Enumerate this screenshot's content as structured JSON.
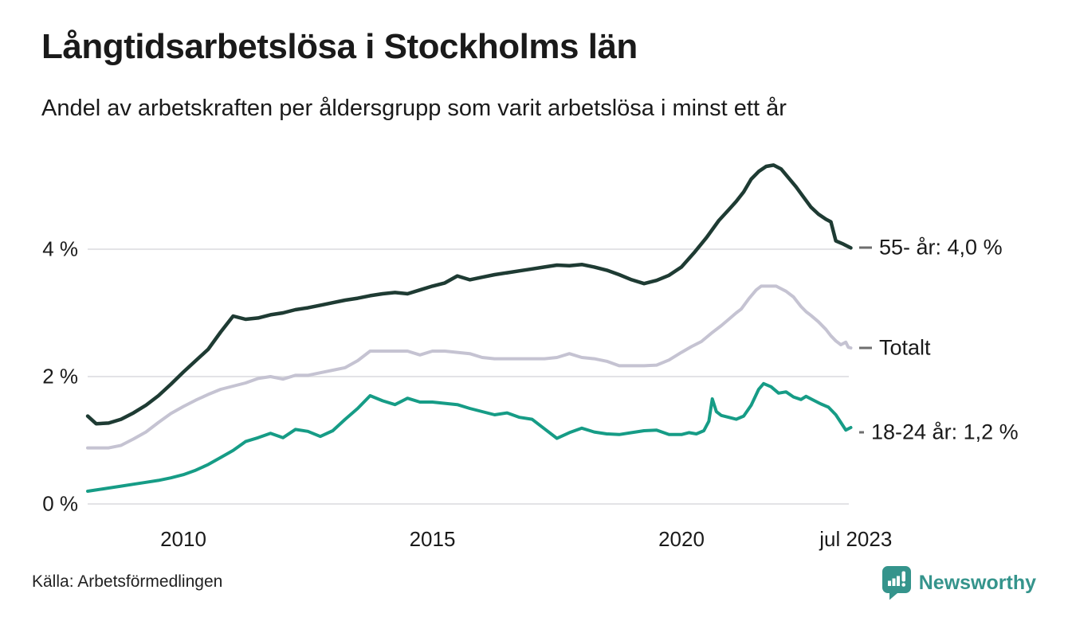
{
  "header": {
    "title": "Långtidsarbetslösa i Stockholms län",
    "subtitle": "Andel av arbetskraften per åldersgrupp som varit arbetslösa i minst ett år"
  },
  "footer": {
    "source": "Källa: Arbetsförmedlingen",
    "brand": "Newsworthy"
  },
  "colors": {
    "text": "#1a1a1a",
    "grid": "#e3e3e6",
    "connector_dash": "#6e6e6e",
    "brand_teal": "#35948c",
    "series_55": "#1e3b33",
    "series_total": "#c5c3d2",
    "series_1824": "#169c86"
  },
  "chart_data": {
    "type": "line",
    "title": "Långtidsarbetslösa i Stockholms län",
    "subtitle": "Andel av arbetskraften per åldersgrupp som varit arbetslösa i minst ett år",
    "unit": "% av arbetskraften",
    "grid": true,
    "legend_position": "right-end-labels",
    "xlim": [
      2008.05,
      2023.6
    ],
    "ylim": [
      0,
      5.5
    ],
    "x_axis": {
      "ticks": [
        {
          "label": "2010",
          "year": 2010
        },
        {
          "label": "2015",
          "year": 2015
        },
        {
          "label": "2020",
          "year": 2020
        },
        {
          "label": "jul 2023",
          "year": 2023.5
        }
      ]
    },
    "y_axis": {
      "ticks": [
        {
          "label": "4 %",
          "value": 4
        },
        {
          "label": "2 %",
          "value": 2
        },
        {
          "label": "0 %",
          "value": 0
        }
      ]
    },
    "series": [
      {
        "id": "55",
        "name": "55- år",
        "end_label": "55- år: 4,0 %",
        "end_value": 4.0,
        "color": "#1e3b33",
        "width": 4.5,
        "dash_width": 16,
        "x": [
          2008.08,
          2008.25,
          2008.5,
          2008.75,
          2009,
          2009.25,
          2009.5,
          2009.75,
          2010,
          2010.25,
          2010.5,
          2010.75,
          2011,
          2011.25,
          2011.5,
          2011.75,
          2012,
          2012.25,
          2012.5,
          2012.75,
          2013,
          2013.25,
          2013.5,
          2013.75,
          2014,
          2014.25,
          2014.5,
          2014.75,
          2015,
          2015.25,
          2015.5,
          2015.75,
          2016,
          2016.25,
          2016.5,
          2016.75,
          2017,
          2017.25,
          2017.5,
          2017.75,
          2018,
          2018.25,
          2018.5,
          2018.75,
          2019,
          2019.25,
          2019.5,
          2019.75,
          2020,
          2020.25,
          2020.5,
          2020.75,
          2020.95,
          2021.1,
          2021.25,
          2021.4,
          2021.55,
          2021.7,
          2021.85,
          2022,
          2022.15,
          2022.3,
          2022.45,
          2022.6,
          2022.75,
          2022.9,
          2023,
          2023.1,
          2023.25,
          2023.4
        ],
        "y": [
          1.38,
          1.26,
          1.27,
          1.33,
          1.43,
          1.55,
          1.7,
          1.88,
          2.07,
          2.25,
          2.43,
          2.7,
          2.95,
          2.9,
          2.92,
          2.97,
          3.0,
          3.05,
          3.08,
          3.12,
          3.16,
          3.2,
          3.23,
          3.27,
          3.3,
          3.32,
          3.3,
          3.36,
          3.42,
          3.47,
          3.58,
          3.52,
          3.56,
          3.6,
          3.63,
          3.66,
          3.69,
          3.72,
          3.75,
          3.74,
          3.76,
          3.72,
          3.67,
          3.6,
          3.52,
          3.46,
          3.51,
          3.59,
          3.72,
          3.94,
          4.18,
          4.45,
          4.62,
          4.75,
          4.9,
          5.1,
          5.22,
          5.3,
          5.32,
          5.26,
          5.12,
          4.98,
          4.82,
          4.66,
          4.55,
          4.47,
          4.43,
          4.13,
          4.08,
          4.02
        ]
      },
      {
        "id": "total",
        "name": "Totalt",
        "end_label": "Totalt",
        "end_value": 2.45,
        "color": "#c5c3d2",
        "width": 4,
        "dash_width": 16,
        "x": [
          2008.08,
          2008.25,
          2008.5,
          2008.75,
          2009,
          2009.25,
          2009.5,
          2009.75,
          2010,
          2010.25,
          2010.5,
          2010.75,
          2011,
          2011.25,
          2011.5,
          2011.75,
          2012,
          2012.25,
          2012.5,
          2012.75,
          2013,
          2013.25,
          2013.5,
          2013.75,
          2014,
          2014.25,
          2014.5,
          2014.75,
          2015,
          2015.25,
          2015.5,
          2015.75,
          2016,
          2016.25,
          2016.5,
          2016.75,
          2017,
          2017.25,
          2017.5,
          2017.75,
          2018,
          2018.25,
          2018.5,
          2018.75,
          2019,
          2019.25,
          2019.5,
          2019.75,
          2020,
          2020.2,
          2020.4,
          2020.6,
          2020.8,
          2020.95,
          2021.1,
          2021.2,
          2021.35,
          2021.5,
          2021.6,
          2021.75,
          2021.9,
          2022,
          2022.1,
          2022.25,
          2022.4,
          2022.5,
          2022.6,
          2022.75,
          2022.9,
          2023,
          2023.1,
          2023.2,
          2023.3,
          2023.35,
          2023.4
        ],
        "y": [
          0.88,
          0.88,
          0.88,
          0.92,
          1.02,
          1.13,
          1.28,
          1.42,
          1.53,
          1.63,
          1.72,
          1.8,
          1.85,
          1.9,
          1.97,
          2.0,
          1.96,
          2.02,
          2.02,
          2.06,
          2.1,
          2.14,
          2.25,
          2.4,
          2.4,
          2.4,
          2.4,
          2.34,
          2.4,
          2.4,
          2.38,
          2.36,
          2.3,
          2.28,
          2.28,
          2.28,
          2.28,
          2.28,
          2.3,
          2.36,
          2.3,
          2.28,
          2.24,
          2.17,
          2.17,
          2.17,
          2.18,
          2.26,
          2.38,
          2.47,
          2.55,
          2.68,
          2.8,
          2.9,
          3.0,
          3.06,
          3.22,
          3.36,
          3.42,
          3.42,
          3.42,
          3.38,
          3.34,
          3.25,
          3.1,
          3.02,
          2.96,
          2.86,
          2.74,
          2.64,
          2.56,
          2.5,
          2.54,
          2.46,
          2.45
        ]
      },
      {
        "id": "1824",
        "name": "18-24 år",
        "end_label": "18-24 år: 1,2 %",
        "end_value": 1.2,
        "color": "#169c86",
        "width": 4,
        "dash_width": 6,
        "x": [
          2008.08,
          2008.25,
          2008.5,
          2008.75,
          2009,
          2009.25,
          2009.5,
          2009.75,
          2010,
          2010.25,
          2010.5,
          2010.75,
          2011,
          2011.25,
          2011.5,
          2011.75,
          2012,
          2012.25,
          2012.5,
          2012.75,
          2013,
          2013.25,
          2013.5,
          2013.75,
          2014,
          2014.25,
          2014.5,
          2014.75,
          2015,
          2015.25,
          2015.5,
          2015.75,
          2016,
          2016.25,
          2016.5,
          2016.75,
          2017,
          2017.25,
          2017.5,
          2017.75,
          2018,
          2018.25,
          2018.5,
          2018.75,
          2019,
          2019.25,
          2019.5,
          2019.75,
          2020,
          2020.15,
          2020.3,
          2020.45,
          2020.55,
          2020.62,
          2020.7,
          2020.8,
          2020.95,
          2021.1,
          2021.25,
          2021.4,
          2021.55,
          2021.65,
          2021.8,
          2021.95,
          2022.1,
          2022.25,
          2022.4,
          2022.5,
          2022.65,
          2022.8,
          2022.95,
          2023.1,
          2023.2,
          2023.3,
          2023.4
        ],
        "y": [
          0.2,
          0.22,
          0.25,
          0.28,
          0.31,
          0.34,
          0.37,
          0.41,
          0.46,
          0.53,
          0.62,
          0.73,
          0.84,
          0.98,
          1.04,
          1.11,
          1.04,
          1.17,
          1.14,
          1.06,
          1.15,
          1.33,
          1.5,
          1.7,
          1.62,
          1.56,
          1.66,
          1.6,
          1.6,
          1.58,
          1.56,
          1.5,
          1.45,
          1.4,
          1.43,
          1.36,
          1.33,
          1.18,
          1.03,
          1.12,
          1.19,
          1.13,
          1.1,
          1.09,
          1.12,
          1.15,
          1.16,
          1.09,
          1.09,
          1.12,
          1.1,
          1.15,
          1.3,
          1.65,
          1.45,
          1.39,
          1.36,
          1.33,
          1.38,
          1.55,
          1.8,
          1.89,
          1.84,
          1.74,
          1.76,
          1.68,
          1.64,
          1.69,
          1.63,
          1.57,
          1.52,
          1.4,
          1.28,
          1.16,
          1.2
        ]
      }
    ]
  }
}
